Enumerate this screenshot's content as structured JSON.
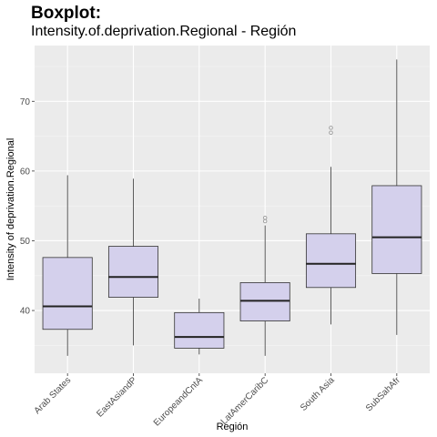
{
  "title": "Boxplot:",
  "subtitle": "Intensity.of.deprivation.Regional  - Región",
  "chart_data": {
    "type": "boxplot",
    "xlabel": "Región",
    "ylabel": "Intensity of deprivation.Regional",
    "ylim": [
      31,
      78
    ],
    "yticks": [
      40,
      50,
      60,
      70
    ],
    "grid": true,
    "box_fill": "#d4d0ec",
    "box_stroke": "#333333",
    "panel_background": "#ebebeb",
    "categories": [
      "Arab States",
      "EastAsiandP",
      "EuropeandCntA",
      "LatAmerCaribC",
      "South Asia",
      "SubSahAfr"
    ],
    "boxes": [
      {
        "min": 33.5,
        "q1": 37.3,
        "median": 40.6,
        "q3": 47.6,
        "max": 59.4,
        "outliers": []
      },
      {
        "min": 35.0,
        "q1": 41.9,
        "median": 44.8,
        "q3": 49.2,
        "max": 58.9,
        "outliers": []
      },
      {
        "min": 33.7,
        "q1": 34.6,
        "median": 36.2,
        "q3": 39.7,
        "max": 41.7,
        "outliers": []
      },
      {
        "min": 33.5,
        "q1": 38.5,
        "median": 41.4,
        "q3": 44.0,
        "max": 52.2,
        "outliers": [
          52.8,
          53.3
        ]
      },
      {
        "min": 38.0,
        "q1": 43.3,
        "median": 46.7,
        "q3": 51.0,
        "max": 60.6,
        "outliers": [
          65.5,
          66.2
        ]
      },
      {
        "min": 36.5,
        "q1": 45.3,
        "median": 50.5,
        "q3": 57.9,
        "max": 76.0,
        "outliers": []
      }
    ]
  }
}
